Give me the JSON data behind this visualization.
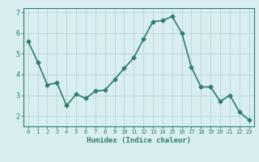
{
  "x": [
    0,
    1,
    2,
    3,
    4,
    5,
    6,
    7,
    8,
    9,
    10,
    11,
    12,
    13,
    14,
    15,
    16,
    17,
    18,
    19,
    20,
    21,
    22,
    23
  ],
  "y": [
    5.6,
    4.6,
    3.5,
    3.6,
    2.5,
    3.05,
    2.85,
    3.2,
    3.25,
    3.75,
    4.3,
    4.8,
    5.7,
    6.55,
    6.6,
    6.8,
    6.0,
    4.35,
    3.4,
    3.4,
    2.7,
    3.0,
    2.2,
    1.8
  ],
  "xlabel": "Humidex (Indice chaleur)",
  "ylim": [
    1.5,
    7.2
  ],
  "xlim": [
    -0.5,
    23.5
  ],
  "yticks": [
    2,
    3,
    4,
    5,
    6,
    7
  ],
  "xticks": [
    0,
    1,
    2,
    3,
    4,
    5,
    6,
    7,
    8,
    9,
    10,
    11,
    12,
    13,
    14,
    15,
    16,
    17,
    18,
    19,
    20,
    21,
    22,
    23
  ],
  "line_color": "#2e7d6e",
  "marker": "D",
  "marker_size": 2.5,
  "bg_color": "#d8eef0",
  "grid_color": "#b8d4d8",
  "tick_color": "#2e7d6e",
  "axis_color": "#2e7d6e",
  "label_color": "#2e7d6e",
  "line_width": 1.2
}
